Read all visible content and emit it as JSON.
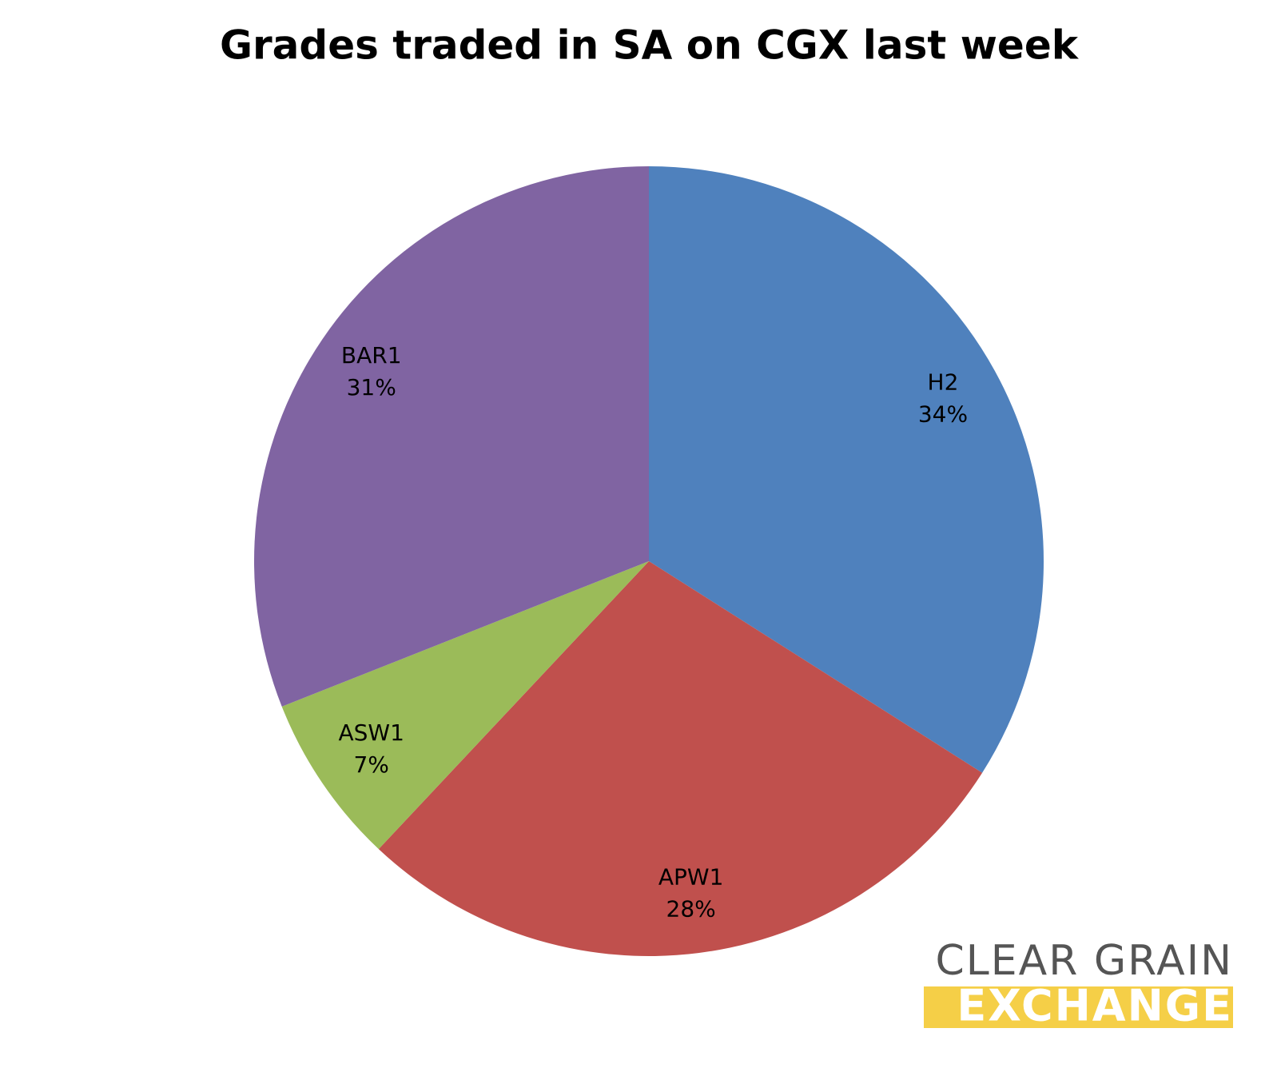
{
  "chart_data": {
    "type": "pie",
    "title": "Grades traded in SA on CGX last week",
    "categories": [
      "H2",
      "APW1",
      "ASW1",
      "BAR1"
    ],
    "values": [
      34,
      28,
      7,
      31
    ],
    "value_labels": [
      "34%",
      "28%",
      "7%",
      "31%"
    ],
    "colors": [
      "#4f81bd",
      "#c0504d",
      "#9bbb59",
      "#8064a2"
    ]
  },
  "logo": {
    "line1": "CLEAR GRAIN",
    "line2": "EXCHANGE"
  }
}
